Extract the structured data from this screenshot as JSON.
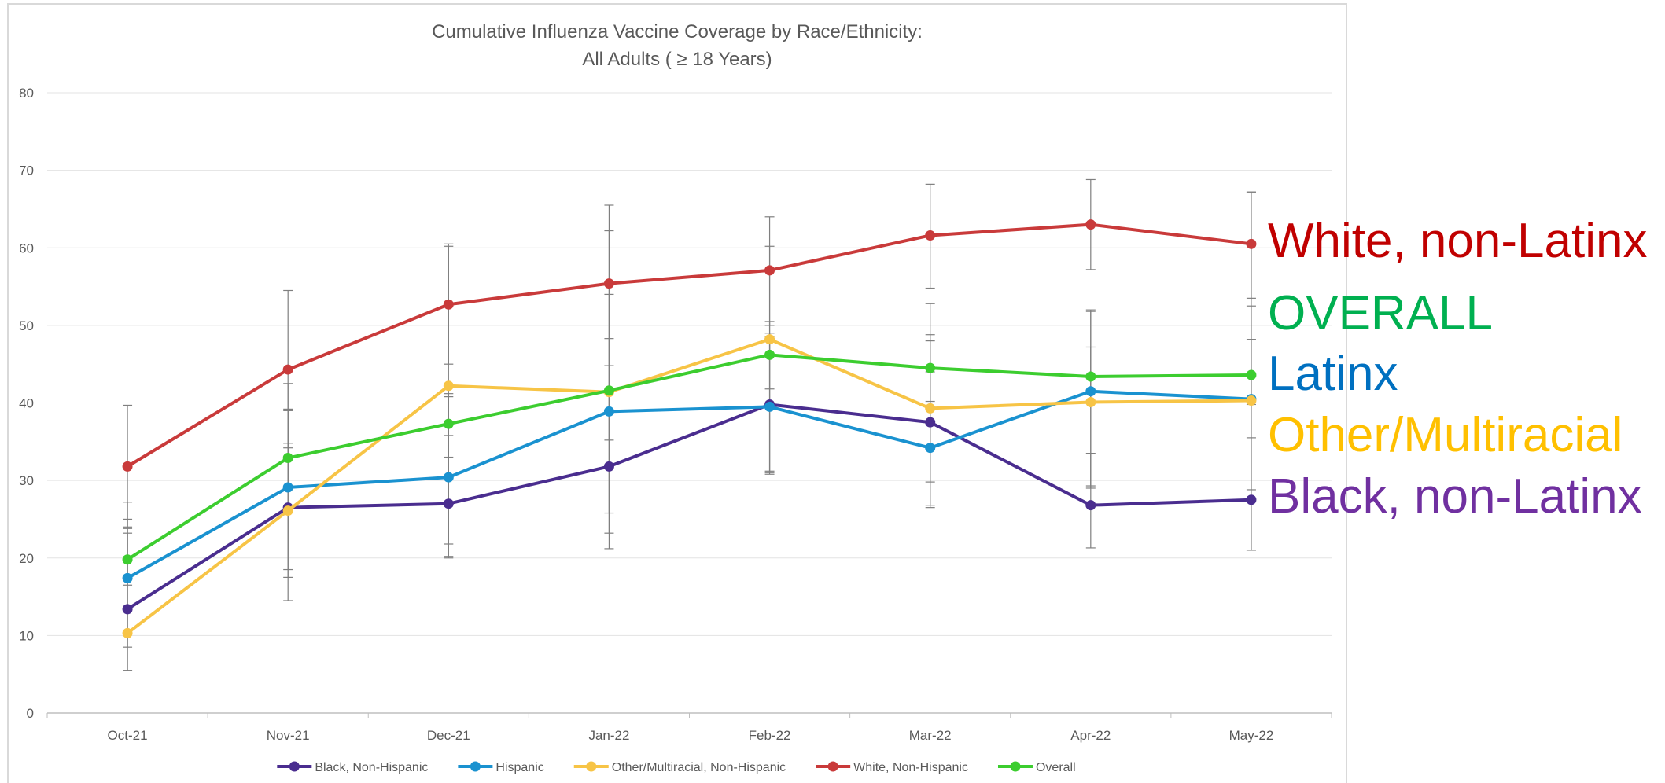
{
  "chart_data": {
    "type": "line",
    "title": "Cumulative Influenza Vaccine Coverage by Race/Ethnicity:",
    "subtitle": "All Adults ( ≥ 18 Years)",
    "xlabel": "",
    "ylabel": "",
    "ylim": [
      0,
      80
    ],
    "y_ticks": [
      0,
      10,
      20,
      30,
      40,
      50,
      60,
      70,
      80
    ],
    "grid": true,
    "legend_position": "bottom",
    "categories": [
      "Oct-21",
      "Nov-21",
      "Dec-21",
      "Jan-22",
      "Feb-22",
      "Mar-22",
      "Apr-22",
      "May-22"
    ],
    "series": [
      {
        "name": "Black, Non-Hispanic",
        "color": "#4a2d8f",
        "values": [
          13.4,
          26.5,
          27.0,
          31.8,
          39.8,
          37.5,
          26.8,
          27.5
        ],
        "error_low": [
          5.5,
          17.5,
          20.0,
          21.2,
          30.8,
          26.5,
          21.3,
          21.0
        ],
        "error_high": [
          24.0,
          42.5,
          35.8,
          48.3,
          49.0,
          48.0,
          33.5,
          35.5
        ]
      },
      {
        "name": "Hispanic",
        "color": "#1a92d0",
        "values": [
          17.4,
          29.1,
          30.4,
          38.9,
          39.5,
          34.2,
          41.5,
          40.5
        ],
        "error_low": [
          8.5,
          18.5,
          21.8,
          25.8,
          31.2,
          26.8,
          29.3,
          28.8
        ],
        "error_high": [
          27.2,
          39.2,
          40.8,
          54.0,
          48.5,
          44.0,
          52.0,
          52.5
        ]
      },
      {
        "name": "Other/Multiracial, Non-Hispanic",
        "color": "#f7c446",
        "values": [
          10.3,
          26.1,
          42.2,
          41.4,
          48.2,
          39.3,
          40.1,
          40.3
        ],
        "error_low": [
          5.5,
          14.5,
          20.2,
          23.2,
          31.0,
          29.8,
          29.0,
          21.0
        ],
        "error_high": [
          25.0,
          39.0,
          60.2,
          65.5,
          60.2,
          52.8,
          51.8,
          67.2
        ]
      },
      {
        "name": "White, Non-Hispanic",
        "color": "#c93a3a",
        "values": [
          31.8,
          44.3,
          52.7,
          55.4,
          57.1,
          61.6,
          63.0,
          60.5
        ],
        "error_low": [
          23.8,
          34.2,
          45.0,
          44.8,
          50.0,
          54.8,
          57.2,
          53.5
        ],
        "error_high": [
          39.7,
          54.5,
          60.5,
          62.2,
          64.0,
          68.2,
          68.8,
          67.2
        ]
      },
      {
        "name": "Overall",
        "color": "#3ccd2f",
        "values": [
          19.8,
          32.9,
          37.3,
          41.6,
          46.2,
          44.5,
          43.4,
          43.6
        ],
        "error_low": [
          16.5,
          28.8,
          33.0,
          35.2,
          41.8,
          40.2,
          40.0,
          39.8
        ],
        "error_high": [
          23.2,
          34.8,
          41.2,
          44.8,
          50.5,
          48.8,
          47.2,
          48.2
        ]
      }
    ],
    "annotations": [
      {
        "text": "White, non-Latinx",
        "color": "#c00000"
      },
      {
        "text": "OVERALL",
        "color": "#00b050"
      },
      {
        "text": "Latinx",
        "color": "#0070c0"
      },
      {
        "text": "Other/Multiracial",
        "color": "#ffc000"
      },
      {
        "text": "Black, non-Latinx",
        "color": "#7030a0"
      }
    ]
  }
}
